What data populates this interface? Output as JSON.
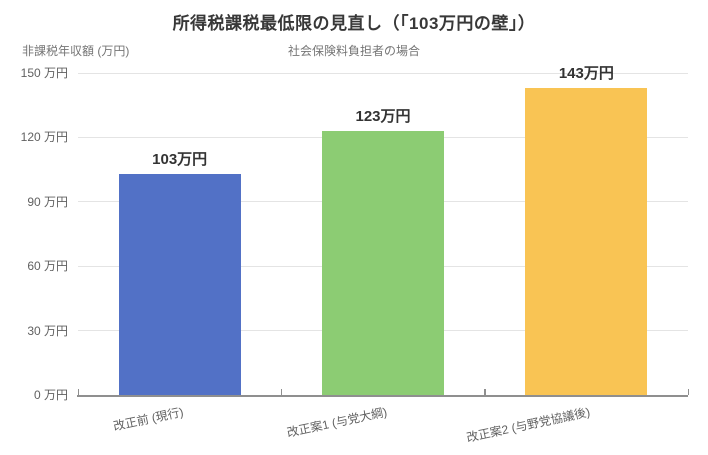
{
  "chart_data": {
    "type": "bar",
    "title": "所得税課税最低限の見直し（「103万円の壁」）",
    "subtitle": "社会保険料負担者の場合",
    "y_axis_title": "非課税年収額 (万円)",
    "categories": [
      "改正前 (現行)",
      "改正案1 (与党大綱)",
      "改正案2 (与野党協議後)"
    ],
    "values": [
      103,
      123,
      143
    ],
    "bar_labels": [
      "103万円",
      "123万円",
      "143万円"
    ],
    "bar_colors": [
      "#5271c6",
      "#8ccc73",
      "#f9c454"
    ],
    "ylim": [
      0,
      150
    ],
    "y_ticks": [
      0,
      30,
      60,
      90,
      120,
      150
    ],
    "y_tick_labels": [
      "0 万円",
      "30 万円",
      "60 万円",
      "90 万円",
      "120 万円",
      "150 万円"
    ],
    "grid": true,
    "legend": false
  },
  "colors": {
    "background": "#ffffff",
    "title_text": "#383838",
    "muted_text": "#757575",
    "tick_text": "#616161",
    "value_text": "#333333",
    "gridline": "#e4e4e4",
    "axis_line": "#8f8f8f"
  }
}
